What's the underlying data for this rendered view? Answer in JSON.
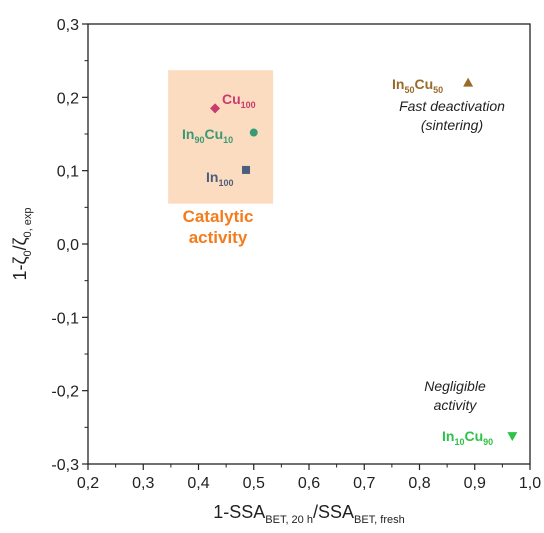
{
  "chart_data": {
    "type": "scatter",
    "xlabel": {
      "main": "1-SSA",
      "sub1": "BET, 20 h",
      "mid": "/SSA",
      "sub2": "BET, fresh"
    },
    "ylabel": {
      "main": "1-ζ",
      "sub1": "0",
      "mid": "/ζ",
      "sub2": "0, exp"
    },
    "xlim": [
      0.2,
      1.0
    ],
    "ylim": [
      -0.3,
      0.3
    ],
    "xticks": [
      "0,2",
      "0,3",
      "0,4",
      "0,5",
      "0,6",
      "0,7",
      "0,8",
      "0,9",
      "1,0"
    ],
    "yticks": [
      "-0,3",
      "-0,2",
      "-0,1",
      "0,0",
      "0,1",
      "0,2",
      "0,3"
    ],
    "grid": false,
    "points": [
      {
        "name": "Cu100",
        "label_main": "Cu",
        "label_sub": "100",
        "x": 0.43,
        "y": 0.185,
        "marker": "diamond",
        "color": "#c83c6e"
      },
      {
        "name": "In90Cu10",
        "label_a": "In",
        "label_a_sub": "90",
        "label_b": "Cu",
        "label_b_sub": "10",
        "x": 0.5,
        "y": 0.152,
        "marker": "circle",
        "color": "#3a9a74"
      },
      {
        "name": "In100",
        "label_main": "In",
        "label_sub": "100",
        "x": 0.486,
        "y": 0.101,
        "marker": "square",
        "color": "#4d5e7a"
      },
      {
        "name": "In50Cu50",
        "label_a": "In",
        "label_a_sub": "50",
        "label_b": "Cu",
        "label_b_sub": "50",
        "x": 0.888,
        "y": 0.22,
        "marker": "triangle-up",
        "color": "#9a6a2a"
      },
      {
        "name": "In10Cu90",
        "label_a": "In",
        "label_a_sub": "10",
        "label_b": "Cu",
        "label_b_sub": "90",
        "x": 0.968,
        "y": -0.262,
        "marker": "triangle-down",
        "color": "#2fc24a"
      }
    ],
    "region": {
      "x_range": [
        0.345,
        0.535
      ],
      "y_range": [
        0.055,
        0.237
      ],
      "color": "#fbdcc0",
      "label_line1": "Catalytic",
      "label_line2": "activity",
      "label_color": "#f47c1c"
    },
    "annotations": {
      "fast_line1": "Fast deactivation",
      "fast_line2": "(sintering)",
      "negligible_line1": "Negligible",
      "negligible_line2": "activity"
    }
  }
}
